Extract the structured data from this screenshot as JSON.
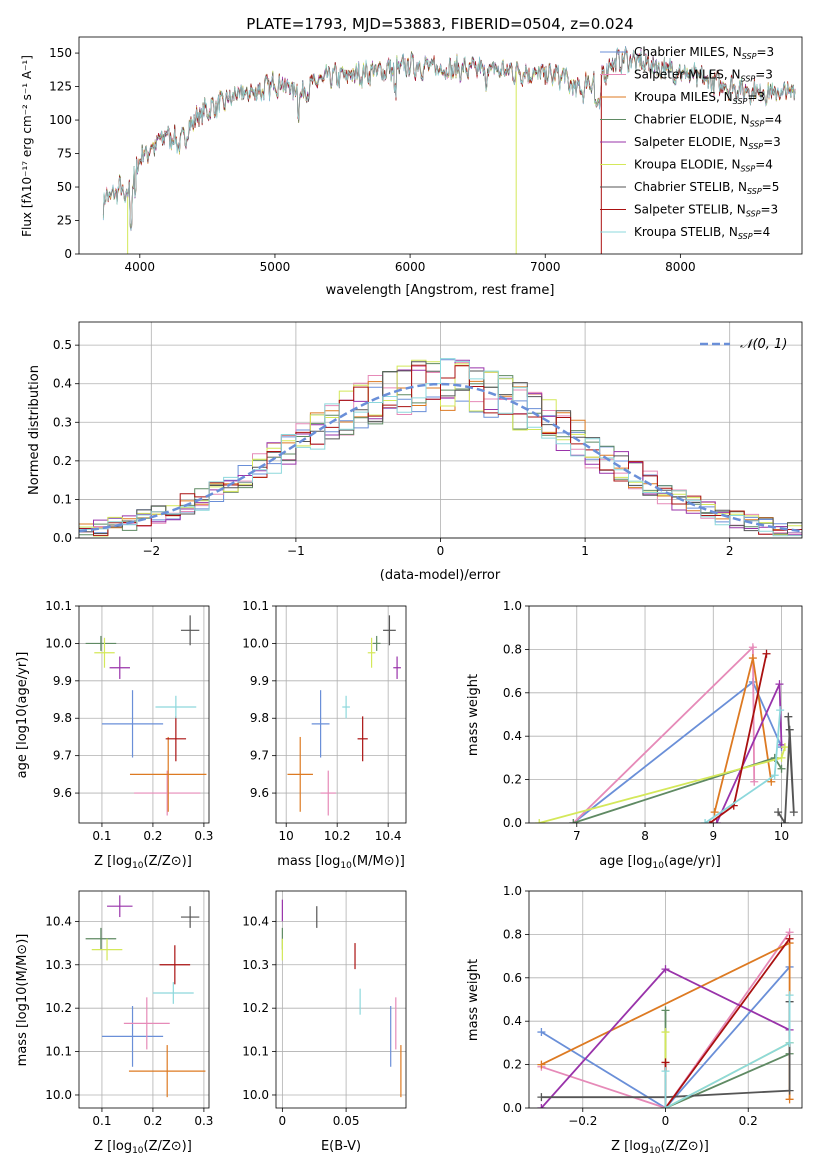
{
  "colors": {
    "chabrier_miles": "#6a8fd8",
    "salpeter_miles": "#e68ab8",
    "kroupa_miles": "#dd7a22",
    "chabrier_elodie": "#5f8a63",
    "salpeter_elodie": "#9933aa",
    "kroupa_elodie": "#d4e85a",
    "chabrier_stelib": "#555555",
    "salpeter_stelib": "#aa1111",
    "kroupa_stelib": "#8dd8dc",
    "gaussian": "#6a8fd8"
  },
  "chart_data": [
    {
      "id": "spectrum",
      "type": "line",
      "title": "PLATE=1793, MJD=53883, FIBERID=0504, z=0.024",
      "xlabel": "wavelength [Angstrom, rest frame]",
      "ylabel": "Flux [fλ10⁻¹⁷ erg cm⁻² s⁻¹ A⁻¹]",
      "xlim": [
        3550,
        8900
      ],
      "ylim": [
        0,
        162
      ],
      "xticks": [
        4000,
        5000,
        6000,
        7000,
        8000
      ],
      "yticks": [
        0,
        25,
        50,
        75,
        100,
        125,
        150
      ],
      "legend_position": "upper-right",
      "envelope": {
        "x": [
          3730,
          3760,
          3800,
          3850,
          3900,
          3950,
          4000,
          4100,
          4200,
          4300,
          4400,
          4500,
          4600,
          4700,
          4800,
          4900,
          5000,
          5100,
          5200,
          5300,
          5400,
          5500,
          5600,
          5700,
          5800,
          5900,
          6000,
          6100,
          6200,
          6300,
          6400,
          6500,
          6600,
          6700,
          6800,
          6900,
          7000,
          7100,
          7200,
          7300,
          7400,
          7500,
          7600,
          7700,
          7800,
          7900,
          8000,
          8100,
          8200,
          8300,
          8400,
          8500,
          8600,
          8700,
          8800
        ],
        "y": [
          35,
          45,
          42,
          50,
          40,
          55,
          72,
          80,
          90,
          82,
          100,
          108,
          112,
          118,
          120,
          122,
          128,
          125,
          120,
          128,
          132,
          133,
          134,
          136,
          137,
          139,
          141,
          140,
          139,
          138,
          138,
          138,
          138,
          137,
          136,
          135,
          134,
          133,
          131,
          128,
          132,
          143,
          146,
          143,
          141,
          138,
          136,
          132,
          130,
          127,
          124,
          122,
          121,
          120,
          121
        ]
      },
      "series": [
        {
          "name": "Chabrier MILES, N_SSP=3",
          "label_main": "Chabrier MILES, N",
          "label_sub": "SSP",
          "label_tail": "=3",
          "color_key": "chabrier_miles"
        },
        {
          "name": "Salpeter MILES, N_SSP=3",
          "label_main": "Salpeter MILES, N",
          "label_sub": "SSP",
          "label_tail": "=3",
          "color_key": "salpeter_miles"
        },
        {
          "name": "Kroupa MILES, N_SSP=3",
          "label_main": "Kroupa MILES, N",
          "label_sub": "SSP",
          "label_tail": "=3",
          "color_key": "kroupa_miles"
        },
        {
          "name": "Chabrier ELODIE, N_SSP=4",
          "label_main": "Chabrier ELODIE, N",
          "label_sub": "SSP",
          "label_tail": "=4",
          "color_key": "chabrier_elodie"
        },
        {
          "name": "Salpeter ELODIE, N_SSP=3",
          "label_main": "Salpeter ELODIE, N",
          "label_sub": "SSP",
          "label_tail": "=3",
          "color_key": "salpeter_elodie"
        },
        {
          "name": "Kroupa ELODIE, N_SSP=4",
          "label_main": "Kroupa ELODIE, N",
          "label_sub": "SSP",
          "label_tail": "=4",
          "color_key": "kroupa_elodie"
        },
        {
          "name": "Chabrier STELIB, N_SSP=5",
          "label_main": "Chabrier STELIB, N",
          "label_sub": "SSP",
          "label_tail": "=5",
          "color_key": "chabrier_stelib"
        },
        {
          "name": "Salpeter STELIB, N_SSP=3",
          "label_main": "Salpeter STELIB, N",
          "label_sub": "SSP",
          "label_tail": "=3",
          "color_key": "salpeter_stelib"
        },
        {
          "name": "Kroupa STELIB, N_SSP=4",
          "label_main": "Kroupa STELIB, N",
          "label_sub": "SSP",
          "label_tail": "=4",
          "color_key": "kroupa_stelib"
        }
      ],
      "drop_lines": [
        {
          "x": 3910,
          "color_key": "kroupa_elodie"
        },
        {
          "x": 6785,
          "color_key": "kroupa_elodie"
        },
        {
          "x": 7415,
          "color_key": "salpeter_stelib"
        }
      ]
    },
    {
      "id": "residuals",
      "type": "histogram",
      "xlabel": "(data-model)/error",
      "ylabel": "Normed distribution",
      "xlim": [
        -2.5,
        2.5
      ],
      "ylim": [
        0,
        0.56
      ],
      "xticks": [
        -2,
        -1,
        0,
        1,
        2
      ],
      "yticks": [
        0.0,
        0.1,
        0.2,
        0.3,
        0.4,
        0.5
      ],
      "grid": true,
      "bin_width": 0.1,
      "legend_position": "upper-right",
      "gaussian_label": "𝒩(0, 1)"
    },
    {
      "id": "age_vs_Z",
      "type": "errorbar",
      "xlabel_main": "Z [log",
      "xlabel_sub": "10",
      "xlabel_tail": "(Z/Z⊙)]",
      "ylabel": "age  [log10(age/yr)]",
      "xlim": [
        0.055,
        0.31
      ],
      "ylim": [
        9.52,
        10.1
      ],
      "xticks": [
        0.1,
        0.2,
        0.3
      ],
      "yticks": [
        9.6,
        9.7,
        9.8,
        9.9,
        10.0,
        10.1
      ],
      "grid": true,
      "points": [
        {
          "x": 0.16,
          "y": 9.785,
          "xerr": 0.06,
          "yerr": 0.09,
          "color_key": "chabrier_miles"
        },
        {
          "x": 0.228,
          "y": 9.6,
          "xerr": 0.065,
          "yerr": 0.06,
          "color_key": "salpeter_miles"
        },
        {
          "x": 0.23,
          "y": 9.65,
          "xerr": 0.075,
          "yerr": 0.1,
          "color_key": "kroupa_miles"
        },
        {
          "x": 0.098,
          "y": 10.0,
          "xerr": 0.03,
          "yerr": 0.02,
          "color_key": "chabrier_elodie"
        },
        {
          "x": 0.135,
          "y": 9.935,
          "xerr": 0.02,
          "yerr": 0.03,
          "color_key": "salpeter_elodie"
        },
        {
          "x": 0.105,
          "y": 9.975,
          "xerr": 0.02,
          "yerr": 0.04,
          "color_key": "kroupa_elodie"
        },
        {
          "x": 0.273,
          "y": 10.035,
          "xerr": 0.018,
          "yerr": 0.04,
          "color_key": "chabrier_stelib"
        },
        {
          "x": 0.245,
          "y": 9.745,
          "xerr": 0.02,
          "yerr": 0.06,
          "color_key": "salpeter_stelib"
        },
        {
          "x": 0.245,
          "y": 9.83,
          "xerr": 0.04,
          "yerr": 0.03,
          "color_key": "kroupa_stelib"
        }
      ]
    },
    {
      "id": "age_vs_mass",
      "type": "errorbar",
      "xlabel_main": "mass [log",
      "xlabel_sub": "10",
      "xlabel_tail": "(M/M⊙)]",
      "xlim": [
        9.96,
        10.47
      ],
      "ylim": [
        9.52,
        10.1
      ],
      "xticks": [
        10.0,
        10.2,
        10.4
      ],
      "yticks": [
        9.6,
        9.7,
        9.8,
        9.9,
        10.0,
        10.1
      ],
      "grid": true,
      "points": [
        {
          "x": 10.135,
          "y": 9.785,
          "xerr": 0.035,
          "yerr": 0.09,
          "color_key": "chabrier_miles"
        },
        {
          "x": 10.165,
          "y": 9.6,
          "xerr": 0.03,
          "yerr": 0.06,
          "color_key": "salpeter_miles"
        },
        {
          "x": 10.055,
          "y": 9.65,
          "xerr": 0.05,
          "yerr": 0.1,
          "color_key": "kroupa_miles"
        },
        {
          "x": 10.355,
          "y": 10.0,
          "xerr": 0.015,
          "yerr": 0.02,
          "color_key": "chabrier_elodie"
        },
        {
          "x": 10.435,
          "y": 9.935,
          "xerr": 0.015,
          "yerr": 0.03,
          "color_key": "salpeter_elodie"
        },
        {
          "x": 10.335,
          "y": 9.975,
          "xerr": 0.015,
          "yerr": 0.04,
          "color_key": "kroupa_elodie"
        },
        {
          "x": 10.405,
          "y": 10.035,
          "xerr": 0.025,
          "yerr": 0.04,
          "color_key": "chabrier_stelib"
        },
        {
          "x": 10.3,
          "y": 9.745,
          "xerr": 0.02,
          "yerr": 0.06,
          "color_key": "salpeter_stelib"
        },
        {
          "x": 10.235,
          "y": 9.83,
          "xerr": 0.015,
          "yerr": 0.03,
          "color_key": "kroupa_stelib"
        }
      ]
    },
    {
      "id": "weight_vs_age",
      "type": "line",
      "xlabel_main": "age  [log",
      "xlabel_sub": "10",
      "xlabel_tail": "(age/yr)]",
      "ylabel": "mass weight",
      "xlim": [
        6.3,
        10.3
      ],
      "ylim": [
        0,
        1.0
      ],
      "xticks": [
        7,
        8,
        9,
        10
      ],
      "yticks": [
        0.0,
        0.2,
        0.4,
        0.6,
        0.8,
        1.0
      ],
      "grid": true,
      "series": [
        {
          "color_key": "chabrier_miles",
          "x": [
            6.95,
            9.58,
            10.0
          ],
          "y": [
            0.0,
            0.65,
            0.35
          ]
        },
        {
          "color_key": "salpeter_miles",
          "x": [
            6.95,
            9.58,
            9.6
          ],
          "y": [
            0.0,
            0.81,
            0.19
          ]
        },
        {
          "color_key": "kroupa_miles",
          "x": [
            9.02,
            9.58,
            9.85
          ],
          "y": [
            0.05,
            0.76,
            0.19
          ]
        },
        {
          "color_key": "chabrier_elodie",
          "x": [
            6.95,
            9.9,
            10.0
          ],
          "y": [
            0.0,
            0.3,
            0.25
          ]
        },
        {
          "color_key": "salpeter_elodie",
          "x": [
            9.05,
            9.97,
            10.0
          ],
          "y": [
            0.0,
            0.64,
            0.36
          ]
        },
        {
          "color_key": "kroupa_elodie",
          "x": [
            6.45,
            10.0,
            10.05
          ],
          "y": [
            0.0,
            0.3,
            0.35
          ]
        },
        {
          "color_key": "chabrier_stelib",
          "x": [
            9.95,
            10.05,
            10.12,
            10.18,
            10.1
          ],
          "y": [
            0.05,
            0.0,
            0.43,
            0.05,
            0.49
          ]
        },
        {
          "color_key": "salpeter_stelib",
          "x": [
            8.95,
            9.3,
            9.78
          ],
          "y": [
            0.0,
            0.08,
            0.78
          ]
        },
        {
          "color_key": "kroupa_stelib",
          "x": [
            8.88,
            9.9,
            9.98
          ],
          "y": [
            0.0,
            0.22,
            0.52
          ]
        }
      ]
    },
    {
      "id": "mass_vs_Z",
      "type": "errorbar",
      "xlabel_main": "Z [log",
      "xlabel_sub": "10",
      "xlabel_tail": "(Z/Z⊙)]",
      "ylabel": "mass [log10(M/M⊙)]",
      "xlim": [
        0.055,
        0.31
      ],
      "ylim": [
        9.97,
        10.47
      ],
      "xticks": [
        0.1,
        0.2,
        0.3
      ],
      "yticks": [
        10.0,
        10.1,
        10.2,
        10.3,
        10.4
      ],
      "grid": true,
      "points": [
        {
          "x": 0.16,
          "y": 10.135,
          "xerr": 0.06,
          "yerr": 0.07,
          "color_key": "chabrier_miles"
        },
        {
          "x": 0.188,
          "y": 10.165,
          "xerr": 0.045,
          "yerr": 0.06,
          "color_key": "salpeter_miles"
        },
        {
          "x": 0.228,
          "y": 10.055,
          "xerr": 0.075,
          "yerr": 0.06,
          "color_key": "kroupa_miles"
        },
        {
          "x": 0.098,
          "y": 10.36,
          "xerr": 0.03,
          "yerr": 0.025,
          "color_key": "chabrier_elodie"
        },
        {
          "x": 0.135,
          "y": 10.435,
          "xerr": 0.025,
          "yerr": 0.025,
          "color_key": "salpeter_elodie"
        },
        {
          "x": 0.11,
          "y": 10.335,
          "xerr": 0.03,
          "yerr": 0.025,
          "color_key": "kroupa_elodie"
        },
        {
          "x": 0.273,
          "y": 10.41,
          "xerr": 0.018,
          "yerr": 0.025,
          "color_key": "chabrier_stelib"
        },
        {
          "x": 0.243,
          "y": 10.3,
          "xerr": 0.03,
          "yerr": 0.045,
          "color_key": "salpeter_stelib"
        },
        {
          "x": 0.24,
          "y": 10.235,
          "xerr": 0.04,
          "yerr": 0.025,
          "color_key": "kroupa_stelib"
        }
      ]
    },
    {
      "id": "mass_vs_ebv",
      "type": "errorbar",
      "xlabel": "E(B-V)",
      "xlim": [
        -0.005,
        0.097
      ],
      "ylim": [
        9.97,
        10.47
      ],
      "xticks": [
        0.0,
        0.05
      ],
      "yticks": [
        10.0,
        10.1,
        10.2,
        10.3,
        10.4
      ],
      "grid": true,
      "points": [
        {
          "x": 0.085,
          "y": 10.135,
          "xerr": 0.0,
          "yerr": 0.07,
          "color_key": "chabrier_miles"
        },
        {
          "x": 0.089,
          "y": 10.165,
          "xerr": 0.0,
          "yerr": 0.06,
          "color_key": "salpeter_miles"
        },
        {
          "x": 0.093,
          "y": 10.055,
          "xerr": 0.0,
          "yerr": 0.06,
          "color_key": "kroupa_miles"
        },
        {
          "x": 0.0,
          "y": 10.36,
          "xerr": 0.0,
          "yerr": 0.025,
          "color_key": "chabrier_elodie"
        },
        {
          "x": 0.0,
          "y": 10.425,
          "xerr": 0.0,
          "yerr": 0.025,
          "color_key": "salpeter_elodie"
        },
        {
          "x": 0.0,
          "y": 10.335,
          "xerr": 0.0,
          "yerr": 0.025,
          "color_key": "kroupa_elodie"
        },
        {
          "x": 0.027,
          "y": 10.41,
          "xerr": 0.0,
          "yerr": 0.025,
          "color_key": "chabrier_stelib"
        },
        {
          "x": 0.057,
          "y": 10.32,
          "xerr": 0.0,
          "yerr": 0.03,
          "color_key": "salpeter_stelib"
        },
        {
          "x": 0.061,
          "y": 10.215,
          "xerr": 0.0,
          "yerr": 0.03,
          "color_key": "kroupa_stelib"
        }
      ]
    },
    {
      "id": "weight_vs_Z",
      "type": "line",
      "xlabel_main": "Z [log",
      "xlabel_sub": "10",
      "xlabel_tail": "(Z/Z⊙)]",
      "ylabel": "mass weight",
      "xlim": [
        -0.33,
        0.33
      ],
      "ylim": [
        0,
        1.0
      ],
      "xticks": [
        -0.2,
        0.0,
        0.2
      ],
      "yticks": [
        0.0,
        0.2,
        0.4,
        0.6,
        0.8,
        1.0
      ],
      "grid": true,
      "series": [
        {
          "color_key": "chabrier_miles",
          "x": [
            -0.3,
            0.0,
            0.3
          ],
          "y": [
            0.35,
            0.0,
            0.65
          ]
        },
        {
          "color_key": "salpeter_miles",
          "x": [
            -0.3,
            0.0,
            0.3
          ],
          "y": [
            0.19,
            0.0,
            0.81
          ]
        },
        {
          "color_key": "kroupa_miles",
          "x": [
            -0.3,
            0.3,
            0.3
          ],
          "y": [
            0.2,
            0.76,
            0.04
          ]
        },
        {
          "color_key": "chabrier_elodie",
          "x": [
            0.0,
            0.0,
            0.3,
            0.3
          ],
          "y": [
            0.45,
            0.0,
            0.25,
            0.3
          ]
        },
        {
          "color_key": "salpeter_elodie",
          "x": [
            -0.3,
            0.0,
            0.3
          ],
          "y": [
            0.0,
            0.64,
            0.36
          ]
        },
        {
          "color_key": "kroupa_elodie",
          "x": [
            0.0,
            0.0,
            0.3
          ],
          "y": [
            0.35,
            0.0,
            0.3
          ]
        },
        {
          "color_key": "chabrier_stelib",
          "x": [
            -0.3,
            0.0,
            0.3,
            0.3
          ],
          "y": [
            0.05,
            0.05,
            0.08,
            0.49
          ]
        },
        {
          "color_key": "salpeter_stelib",
          "x": [
            0.0,
            0.0,
            0.3
          ],
          "y": [
            0.21,
            0.0,
            0.78
          ]
        },
        {
          "color_key": "kroupa_stelib",
          "x": [
            0.0,
            0.0,
            0.3,
            0.3
          ],
          "y": [
            0.17,
            0.0,
            0.3,
            0.52
          ]
        }
      ]
    }
  ]
}
